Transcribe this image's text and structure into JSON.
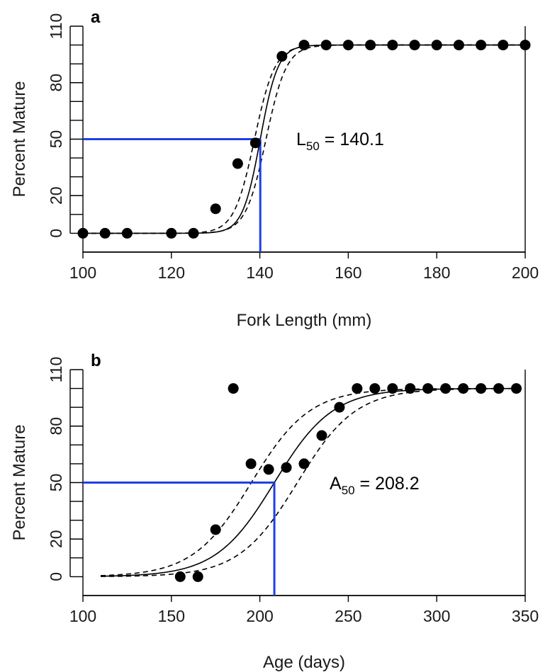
{
  "chart_data": [
    {
      "type": "scatter",
      "panel": "a",
      "xlabel": "Fork Length (mm)",
      "ylabel": "Percent Mature",
      "xlim": [
        100,
        200
      ],
      "ylim": [
        -10,
        110
      ],
      "xticks": [
        100,
        120,
        140,
        160,
        180,
        200
      ],
      "yticks_labeled": [
        0,
        20,
        50,
        80,
        110
      ],
      "yticks_minor": [
        10,
        30,
        40,
        60,
        70,
        90,
        100
      ],
      "points": {
        "x": [
          100,
          105,
          110,
          120,
          125,
          130,
          135,
          139,
          145,
          150,
          155,
          160,
          165,
          170,
          175,
          180,
          185,
          190,
          195,
          200
        ],
        "y": [
          0,
          0,
          0,
          0,
          0,
          13,
          37,
          48,
          94,
          100,
          100,
          100,
          100,
          100,
          100,
          100,
          100,
          100,
          100,
          100
        ]
      },
      "fit": {
        "model": "logistic",
        "x50": 140.1,
        "scale": 2.0,
        "band_scale": 2.3,
        "band_shift": 1.3,
        "x_range": [
          100,
          200
        ]
      },
      "reference": {
        "x": 140.1,
        "y": 50,
        "color": "#1f3fe6"
      },
      "annotation": {
        "symbol": "L",
        "subscript": "50",
        "text": " = 140.1"
      }
    },
    {
      "type": "scatter",
      "panel": "b",
      "xlabel": "Age (days)",
      "ylabel": "Percent Mature",
      "xlim": [
        100,
        350
      ],
      "ylim": [
        -10,
        110
      ],
      "xticks": [
        100,
        150,
        200,
        250,
        300,
        350
      ],
      "yticks_labeled": [
        0,
        20,
        50,
        80,
        110
      ],
      "yticks_minor": [
        10,
        30,
        40,
        60,
        70,
        90,
        100
      ],
      "points": {
        "x": [
          155,
          165,
          175,
          185,
          195,
          205,
          215,
          225,
          235,
          245,
          255,
          265,
          275,
          285,
          295,
          305,
          315,
          325,
          335,
          345
        ],
        "y": [
          0,
          0,
          25,
          100,
          60,
          57,
          58,
          60,
          75,
          90,
          100,
          100,
          100,
          100,
          100,
          100,
          100,
          100,
          100,
          100
        ]
      },
      "fit": {
        "model": "logistic",
        "x50": 208.2,
        "scale": 16.5,
        "band_scale": 16.5,
        "band_shift": 13,
        "x_range": [
          110,
          345
        ]
      },
      "reference": {
        "x": 208.2,
        "y": 50,
        "color": "#1f3fe6"
      },
      "annotation": {
        "symbol": "A",
        "subscript": "50",
        "text": " = 208.2"
      }
    }
  ]
}
